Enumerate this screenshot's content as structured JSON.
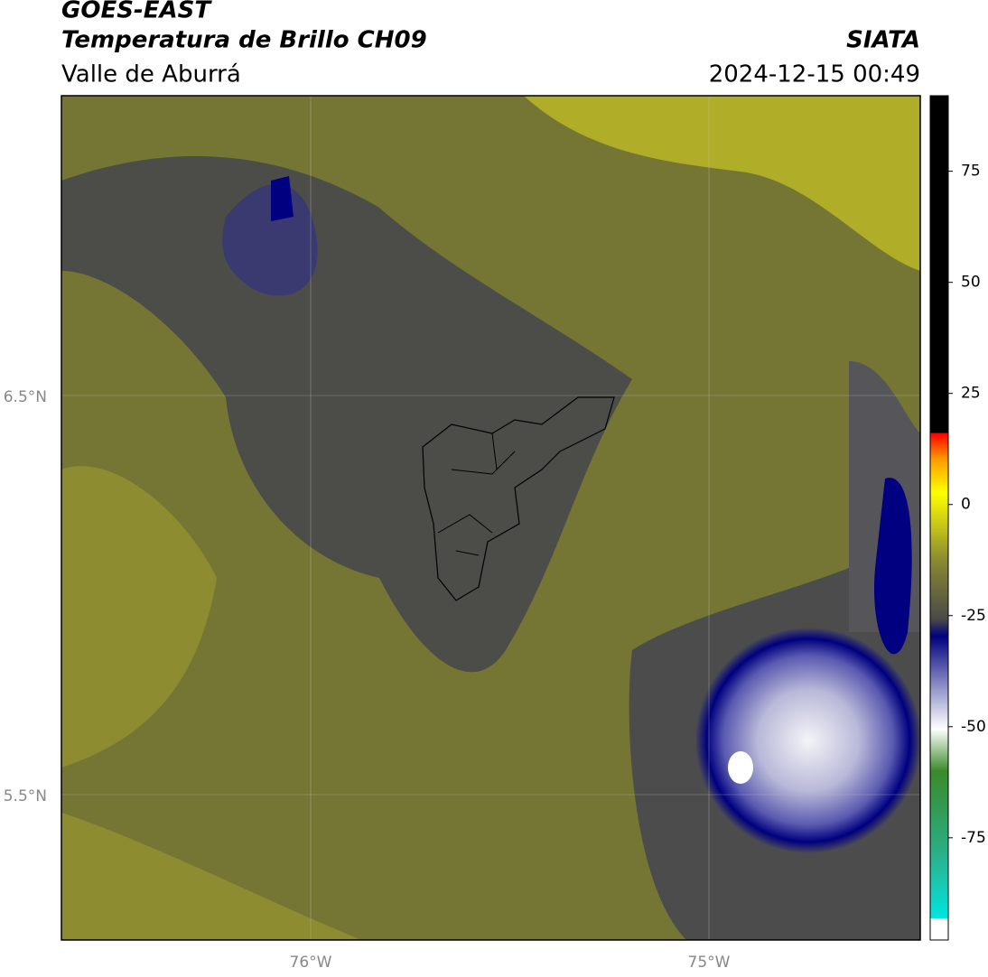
{
  "header": {
    "title": "GOES-EAST",
    "subtitle": "Temperatura de Brillo CH09",
    "region": "Valle de Aburrá",
    "source": "SIATA",
    "datetime": "2024-12-15 00:49"
  },
  "map": {
    "lat_labels": [
      "6.5°N",
      "5.5°N"
    ],
    "lon_labels": [
      "76°W",
      "75°W"
    ]
  },
  "colorbar": {
    "ylim": [
      -98,
      92
    ],
    "ticks": [
      75,
      50,
      25,
      0,
      -25,
      -50,
      -75
    ]
  }
}
